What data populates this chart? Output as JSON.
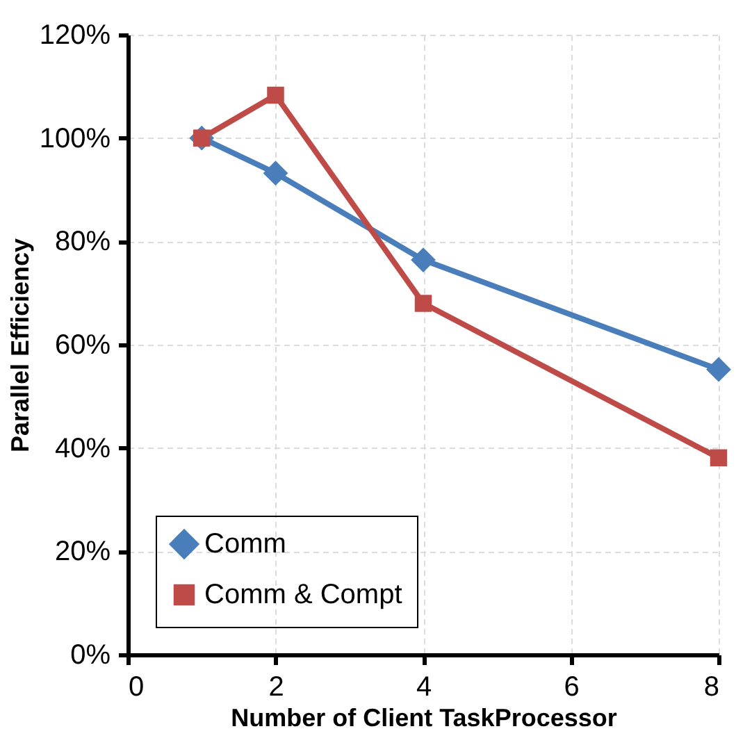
{
  "chart_data": {
    "type": "line",
    "xlabel": "Number of Client TaskProcessor",
    "ylabel": "Parallel Efficiency",
    "x": [
      1,
      2,
      4,
      8
    ],
    "series": [
      {
        "name": "Comm",
        "color": "#4a7ebb",
        "values": [
          100,
          93.2,
          76.4,
          55.2
        ],
        "marker": "diamond"
      },
      {
        "name": "Comm & Compt",
        "color": "#be4b48",
        "values": [
          100,
          108.3,
          68.0,
          38.1
        ],
        "marker": "square"
      }
    ],
    "xlim": [
      0,
      8
    ],
    "xticks": [
      0,
      2,
      4,
      6,
      8
    ],
    "ylim": [
      0,
      120
    ],
    "yticks": [
      {
        "value": 0,
        "label": "0%"
      },
      {
        "value": 20,
        "label": "20%"
      },
      {
        "value": 40,
        "label": "40%"
      },
      {
        "value": 60,
        "label": "60%"
      },
      {
        "value": 80,
        "label": "80%"
      },
      {
        "value": 100,
        "label": "100%"
      },
      {
        "value": 120,
        "label": "120%"
      }
    ],
    "grid": true,
    "legend": "bottom left",
    "line_style": "solid"
  }
}
